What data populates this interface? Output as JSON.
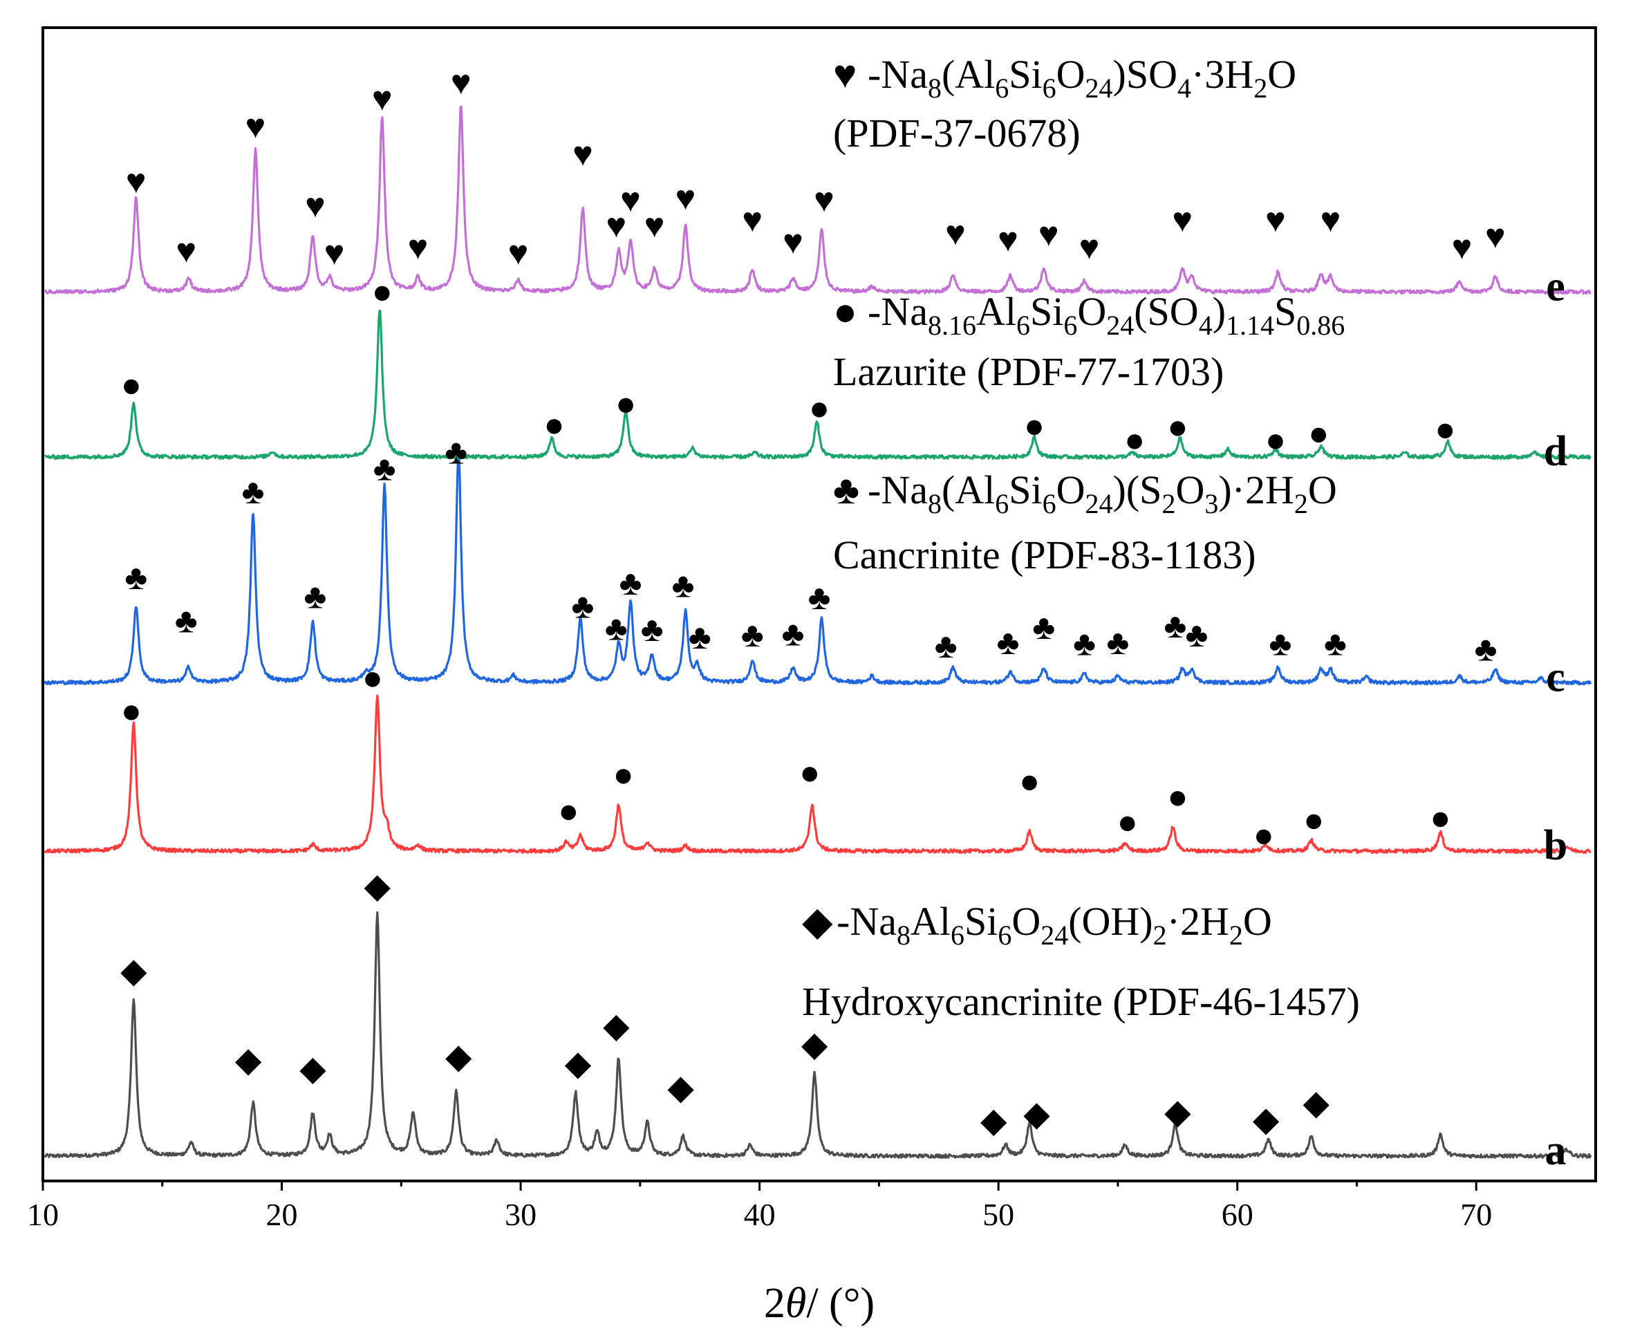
{
  "chart_data": {
    "type": "line",
    "title": "",
    "xlabel": {
      "prefix": "2",
      "symbol": "θ",
      "suffix": "/ (°)"
    },
    "ylabel": "",
    "xlim": [
      10,
      75
    ],
    "ylim": [
      0,
      1
    ],
    "x_ticks": [
      10,
      20,
      30,
      40,
      50,
      60,
      70
    ],
    "grid": false,
    "series": [
      {
        "name": "a",
        "color": "#4d4d4d",
        "baseline": 0.0,
        "peaks": [
          [
            13.8,
            0.143
          ],
          [
            16.2,
            0.012
          ],
          [
            18.8,
            0.048
          ],
          [
            21.3,
            0.038
          ],
          [
            22.0,
            0.018
          ],
          [
            24.0,
            0.22
          ],
          [
            25.5,
            0.038
          ],
          [
            27.3,
            0.058
          ],
          [
            29.0,
            0.014
          ],
          [
            32.3,
            0.057
          ],
          [
            33.2,
            0.02
          ],
          [
            34.1,
            0.088
          ],
          [
            35.3,
            0.03
          ],
          [
            36.8,
            0.018
          ],
          [
            39.6,
            0.01
          ],
          [
            42.3,
            0.075
          ],
          [
            50.3,
            0.01
          ],
          [
            51.3,
            0.03
          ],
          [
            55.3,
            0.01
          ],
          [
            57.4,
            0.03
          ],
          [
            61.3,
            0.015
          ],
          [
            63.1,
            0.018
          ],
          [
            68.5,
            0.02
          ],
          [
            73.8,
            0.006
          ]
        ],
        "markers": [
          [
            13.8,
            0.168
          ],
          [
            18.6,
            0.087
          ],
          [
            21.3,
            0.079
          ],
          [
            24.0,
            0.245
          ],
          [
            27.4,
            0.09
          ],
          [
            32.4,
            0.084
          ],
          [
            34.0,
            0.118
          ],
          [
            36.7,
            0.062
          ],
          [
            42.3,
            0.101
          ],
          [
            49.8,
            0.032
          ],
          [
            51.6,
            0.038
          ],
          [
            57.5,
            0.04
          ],
          [
            61.2,
            0.033
          ],
          [
            63.3,
            0.048
          ]
        ]
      },
      {
        "name": "b",
        "color": "#ff3b3b",
        "baseline": 0.277,
        "peaks": [
          [
            13.8,
            0.118
          ],
          [
            21.3,
            0.006
          ],
          [
            24.0,
            0.14
          ],
          [
            24.4,
            0.016
          ],
          [
            25.7,
            0.005
          ],
          [
            31.9,
            0.008
          ],
          [
            32.5,
            0.014
          ],
          [
            34.1,
            0.042
          ],
          [
            35.3,
            0.008
          ],
          [
            36.9,
            0.005
          ],
          [
            42.2,
            0.042
          ],
          [
            51.3,
            0.018
          ],
          [
            55.3,
            0.007
          ],
          [
            57.3,
            0.022
          ],
          [
            61.2,
            0.006
          ],
          [
            63.1,
            0.01
          ],
          [
            68.5,
            0.017
          ],
          [
            73.8,
            0.004
          ]
        ],
        "markers": [
          [
            13.7,
            0.404
          ],
          [
            23.8,
            0.434
          ],
          [
            32.0,
            0.313
          ],
          [
            34.3,
            0.346
          ],
          [
            42.1,
            0.348
          ],
          [
            51.3,
            0.34
          ],
          [
            55.4,
            0.303
          ],
          [
            57.5,
            0.326
          ],
          [
            61.1,
            0.291
          ],
          [
            63.2,
            0.305
          ],
          [
            68.5,
            0.307
          ]
        ]
      },
      {
        "name": "c",
        "color": "#1f66e0",
        "baseline": 0.43,
        "peaks": [
          [
            13.9,
            0.07
          ],
          [
            16.1,
            0.014
          ],
          [
            18.8,
            0.154
          ],
          [
            21.3,
            0.055
          ],
          [
            23.5,
            0.006
          ],
          [
            24.3,
            0.18
          ],
          [
            27.4,
            0.212
          ],
          [
            29.7,
            0.006
          ],
          [
            32.5,
            0.058
          ],
          [
            34.1,
            0.032
          ],
          [
            34.6,
            0.072
          ],
          [
            35.5,
            0.024
          ],
          [
            36.9,
            0.064
          ],
          [
            37.4,
            0.014
          ],
          [
            39.7,
            0.02
          ],
          [
            41.4,
            0.013
          ],
          [
            42.6,
            0.058
          ],
          [
            44.7,
            0.006
          ],
          [
            48.1,
            0.014
          ],
          [
            50.5,
            0.01
          ],
          [
            51.9,
            0.013
          ],
          [
            53.6,
            0.008
          ],
          [
            55.0,
            0.006
          ],
          [
            57.7,
            0.012
          ],
          [
            58.1,
            0.012
          ],
          [
            61.7,
            0.014
          ],
          [
            63.5,
            0.012
          ],
          [
            63.9,
            0.012
          ],
          [
            65.4,
            0.005
          ],
          [
            69.3,
            0.006
          ],
          [
            70.8,
            0.012
          ],
          [
            72.7,
            0.004
          ]
        ],
        "markers": [
          [
            13.9,
            0.525
          ],
          [
            16.0,
            0.486
          ],
          [
            18.8,
            0.603
          ],
          [
            21.4,
            0.508
          ],
          [
            24.3,
            0.624
          ],
          [
            27.3,
            0.639
          ],
          [
            32.6,
            0.499
          ],
          [
            34.0,
            0.479
          ],
          [
            34.6,
            0.52
          ],
          [
            35.5,
            0.478
          ],
          [
            36.8,
            0.518
          ],
          [
            37.5,
            0.471
          ],
          [
            39.7,
            0.473
          ],
          [
            41.4,
            0.474
          ],
          [
            42.5,
            0.507
          ],
          [
            47.8,
            0.463
          ],
          [
            50.4,
            0.466
          ],
          [
            51.9,
            0.48
          ],
          [
            53.6,
            0.465
          ],
          [
            55.0,
            0.466
          ],
          [
            57.4,
            0.481
          ],
          [
            58.3,
            0.473
          ],
          [
            61.8,
            0.465
          ],
          [
            64.1,
            0.465
          ],
          [
            70.4,
            0.46
          ]
        ]
      },
      {
        "name": "d",
        "color": "#1aa56b",
        "baseline": 0.635,
        "peaks": [
          [
            13.8,
            0.05
          ],
          [
            19.6,
            0.005
          ],
          [
            24.1,
            0.135
          ],
          [
            31.3,
            0.017
          ],
          [
            34.4,
            0.042
          ],
          [
            37.2,
            0.008
          ],
          [
            39.8,
            0.004
          ],
          [
            42.4,
            0.032
          ],
          [
            51.5,
            0.018
          ],
          [
            55.6,
            0.004
          ],
          [
            57.6,
            0.017
          ],
          [
            59.6,
            0.007
          ],
          [
            61.6,
            0.007
          ],
          [
            63.5,
            0.01
          ],
          [
            67.0,
            0.004
          ],
          [
            68.8,
            0.014
          ],
          [
            72.4,
            0.005
          ]
        ],
        "markers": [
          [
            13.7,
            0.7
          ],
          [
            24.2,
            0.785
          ],
          [
            31.4,
            0.664
          ],
          [
            34.4,
            0.683
          ],
          [
            42.5,
            0.679
          ],
          [
            51.5,
            0.663
          ],
          [
            55.7,
            0.65
          ],
          [
            57.5,
            0.662
          ],
          [
            61.6,
            0.65
          ],
          [
            63.4,
            0.656
          ],
          [
            68.7,
            0.66
          ]
        ]
      },
      {
        "name": "e",
        "color": "#c46fd6",
        "baseline": 0.785,
        "peaks": [
          [
            13.9,
            0.085
          ],
          [
            16.1,
            0.012
          ],
          [
            18.9,
            0.13
          ],
          [
            21.3,
            0.05
          ],
          [
            22.0,
            0.012
          ],
          [
            24.2,
            0.16
          ],
          [
            25.7,
            0.012
          ],
          [
            27.5,
            0.17
          ],
          [
            29.9,
            0.01
          ],
          [
            32.6,
            0.075
          ],
          [
            34.1,
            0.035
          ],
          [
            34.6,
            0.045
          ],
          [
            35.6,
            0.02
          ],
          [
            36.9,
            0.06
          ],
          [
            39.7,
            0.02
          ],
          [
            41.4,
            0.012
          ],
          [
            42.6,
            0.056
          ],
          [
            44.7,
            0.005
          ],
          [
            48.1,
            0.016
          ],
          [
            50.5,
            0.015
          ],
          [
            51.9,
            0.022
          ],
          [
            53.6,
            0.01
          ],
          [
            57.7,
            0.02
          ],
          [
            58.1,
            0.014
          ],
          [
            61.7,
            0.018
          ],
          [
            63.5,
            0.016
          ],
          [
            63.9,
            0.013
          ],
          [
            69.3,
            0.01
          ],
          [
            70.8,
            0.014
          ]
        ],
        "markers": [
          [
            13.9,
            0.885
          ],
          [
            16.0,
            0.822
          ],
          [
            18.9,
            0.935
          ],
          [
            21.4,
            0.863
          ],
          [
            22.2,
            0.82
          ],
          [
            24.2,
            0.96
          ],
          [
            25.7,
            0.825
          ],
          [
            27.5,
            0.975
          ],
          [
            29.9,
            0.82
          ],
          [
            32.6,
            0.91
          ],
          [
            34.0,
            0.845
          ],
          [
            34.6,
            0.868
          ],
          [
            35.6,
            0.845
          ],
          [
            36.9,
            0.87
          ],
          [
            39.7,
            0.85
          ],
          [
            41.4,
            0.83
          ],
          [
            42.7,
            0.868
          ],
          [
            48.2,
            0.838
          ],
          [
            50.4,
            0.832
          ],
          [
            52.1,
            0.837
          ],
          [
            53.8,
            0.825
          ],
          [
            57.7,
            0.85
          ],
          [
            61.6,
            0.85
          ],
          [
            63.9,
            0.85
          ],
          [
            69.4,
            0.825
          ],
          [
            70.8,
            0.835
          ]
        ]
      }
    ],
    "legend": [
      {
        "symbol": "heart",
        "formula": [
          "-Na",
          "8",
          "(Al",
          "6",
          "Si",
          "6",
          "O",
          "24",
          ")SO",
          "4",
          "·3H",
          "2",
          "O"
        ],
        "line2": "(PDF-37-0678)"
      },
      {
        "symbol": "dot",
        "formula": [
          "-Na",
          "8.16",
          "Al",
          "6",
          "Si",
          "6",
          "O",
          "24",
          "(SO",
          "4",
          ")",
          "1.14",
          "S",
          "0.86"
        ],
        "line2": "Lazurite (PDF-77-1703)"
      },
      {
        "symbol": "club",
        "formula": [
          "-Na",
          "8",
          "(Al",
          "6",
          "Si",
          "6",
          "O",
          "24",
          ")(S",
          "2",
          "O",
          "3",
          ")·2H",
          "2",
          "O"
        ],
        "line2": "Cancrinite (PDF-83-1183)"
      },
      {
        "symbol": "diamond",
        "formula": [
          "-Na",
          "8",
          "Al",
          "6",
          "Si",
          "6",
          "O",
          "24",
          "(OH)",
          "2",
          "·2H",
          "2",
          "O"
        ],
        "line2": "Hydroxycancrinite (PDF-46-1457)"
      }
    ],
    "marker_glyphs": {
      "heart": "♥",
      "dot": "●",
      "club": "♣",
      "diamond": "◆"
    },
    "series_marker_symbol": {
      "a": "diamond",
      "b": "dot",
      "c": "club",
      "d": "dot",
      "e": "heart"
    }
  }
}
